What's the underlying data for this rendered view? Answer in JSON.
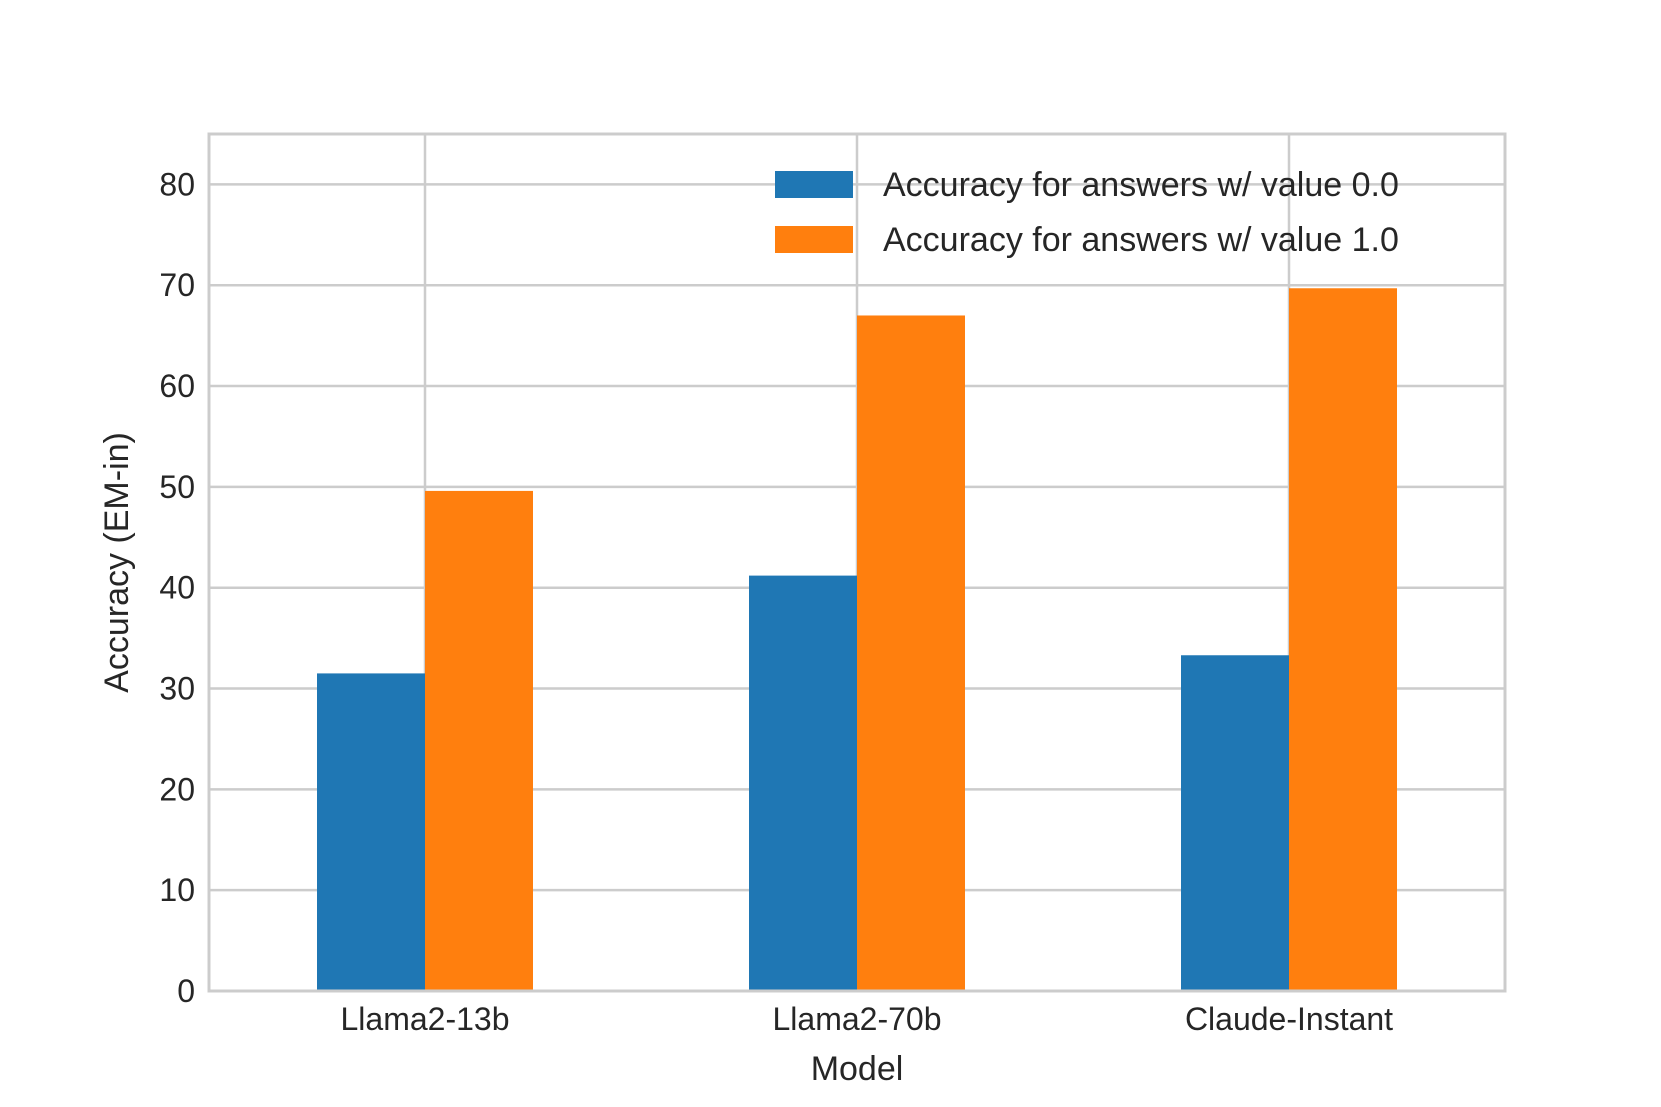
{
  "chart_data": {
    "type": "bar",
    "xlabel": "Model",
    "ylabel": "Accuracy (EM-in)",
    "categories": [
      "Llama2-13b",
      "Llama2-70b",
      "Claude-Instant"
    ],
    "series": [
      {
        "name": "Accuracy for answers w/ value 0.0",
        "color": "#1f77b4",
        "values": [
          31.5,
          41.2,
          33.3
        ]
      },
      {
        "name": "Accuracy for answers w/ value 1.0",
        "color": "#ff7f0e",
        "values": [
          49.6,
          67.0,
          69.7
        ]
      }
    ],
    "ylim": [
      0,
      85
    ],
    "yticks": [
      0,
      10,
      20,
      30,
      40,
      50,
      60,
      70,
      80
    ],
    "grid": true,
    "legend_position": "top-right"
  }
}
